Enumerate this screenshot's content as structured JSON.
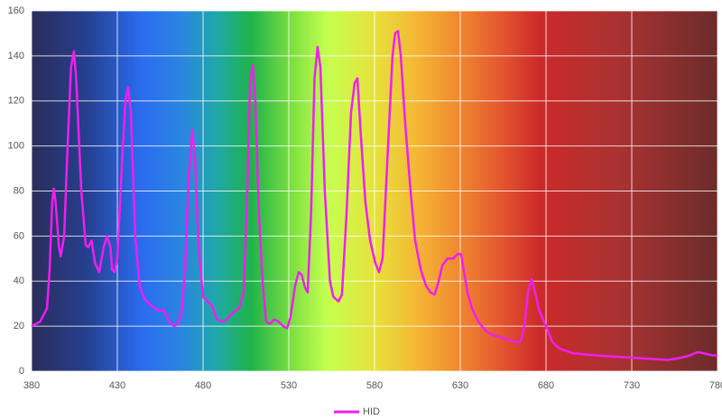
{
  "chart_data": {
    "type": "line",
    "x": [
      380,
      385,
      387,
      389,
      390.5,
      392,
      393,
      394,
      396,
      397,
      399,
      401,
      403,
      404.7,
      406,
      409,
      411.6,
      413,
      415,
      417,
      419.5,
      422,
      424,
      426,
      427,
      428.4,
      430,
      432.6,
      434.7,
      436.3,
      437.9,
      440.5,
      443,
      445.8,
      450,
      453.7,
      457.4,
      460,
      463,
      465.3,
      467.4,
      469.5,
      471.6,
      473.7,
      475.3,
      477.4,
      480,
      482.6,
      485.3,
      488,
      491,
      494,
      497.4,
      501,
      503.7,
      505.8,
      507.4,
      509,
      510.5,
      512.6,
      514.7,
      516.8,
      519,
      521.6,
      524,
      526.8,
      529,
      531,
      533.7,
      535.8,
      537.4,
      539.5,
      541,
      543,
      545,
      546.8,
      548.4,
      551,
      554,
      556,
      559,
      561,
      563.7,
      566.3,
      568.4,
      570,
      572,
      574.7,
      577.4,
      580.5,
      582.6,
      584.7,
      587.9,
      590.5,
      592,
      593.7,
      595.3,
      597.9,
      601,
      603.7,
      607,
      610,
      612.6,
      615,
      617.4,
      619.5,
      622.6,
      625.8,
      628.4,
      630.5,
      632,
      634.2,
      636.8,
      640.5,
      644.7,
      649,
      653.7,
      658,
      662,
      665,
      667.4,
      669.5,
      671.6,
      673.7,
      676,
      680,
      683.7,
      688,
      695.8,
      709,
      730,
      751,
      759,
      764,
      768.4,
      772,
      777,
      780
    ],
    "series": [
      {
        "name": "HID",
        "color": "#f01ef0",
        "values": [
          20,
          22,
          25,
          28,
          45,
          75,
          81,
          75,
          55,
          51,
          60,
          100,
          135,
          142,
          130,
          80,
          56,
          55,
          58,
          48,
          44,
          55,
          60,
          55,
          45,
          44,
          50,
          90,
          120,
          126,
          115,
          60,
          38,
          32,
          29,
          27,
          27,
          22,
          20,
          21,
          26,
          45,
          85,
          107,
          95,
          55,
          33,
          31,
          29,
          23,
          22,
          23,
          26,
          28,
          35,
          80,
          128,
          136,
          120,
          70,
          40,
          22,
          21,
          23,
          22,
          20,
          19,
          24,
          38,
          44,
          43,
          37,
          35,
          70,
          130,
          144,
          135,
          80,
          40,
          33,
          31,
          34,
          70,
          115,
          128,
          130,
          105,
          75,
          58,
          48,
          44,
          50,
          100,
          140,
          150,
          151,
          140,
          110,
          80,
          58,
          45,
          38,
          35,
          34,
          40,
          47,
          50,
          50,
          52,
          52,
          45,
          35,
          28,
          22,
          18,
          16,
          15,
          14,
          13,
          13,
          20,
          35,
          41,
          35,
          27,
          20,
          13,
          10,
          8,
          7,
          6,
          5,
          6,
          7,
          8.5,
          8,
          7,
          7
        ]
      }
    ],
    "xlim": [
      380,
      780
    ],
    "ylim": [
      0,
      160
    ],
    "xticks": [
      380,
      430,
      480,
      530,
      580,
      630,
      680,
      730,
      780
    ],
    "yticks": [
      0,
      20,
      40,
      60,
      80,
      100,
      120,
      140,
      160
    ],
    "grid": true,
    "legend": "bottom"
  }
}
